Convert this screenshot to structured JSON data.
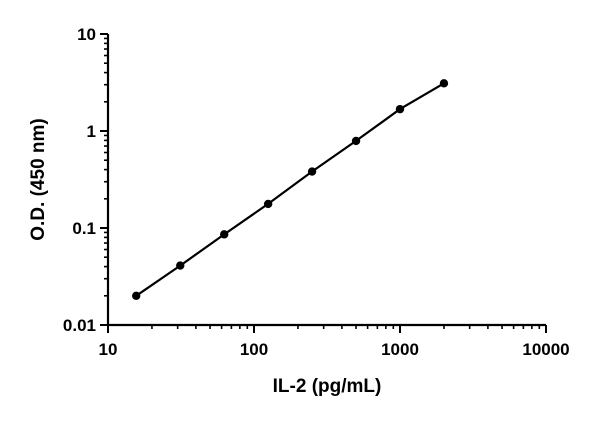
{
  "chart_data": {
    "type": "line",
    "title": "",
    "xlabel": "IL-2 (pg/mL)",
    "ylabel": "O.D. (450 nm)",
    "x_scale": "log",
    "y_scale": "log",
    "xlim": [
      10,
      10000
    ],
    "ylim": [
      0.01,
      10
    ],
    "x_ticks": [
      10,
      100,
      1000,
      10000
    ],
    "x_tick_labels": [
      "10",
      "100",
      "1000",
      "10000"
    ],
    "y_ticks": [
      0.01,
      0.1,
      1,
      10
    ],
    "y_tick_labels": [
      "0.01",
      "0.1",
      "1",
      "10"
    ],
    "grid": false,
    "legend": "none",
    "series": [
      {
        "x": [
          15.6,
          31.25,
          62.5,
          125,
          250,
          500,
          1000,
          2000
        ],
        "y": [
          0.02,
          0.041,
          0.086,
          0.177,
          0.382,
          0.79,
          1.68,
          3.1
        ],
        "color": "#000000"
      }
    ]
  }
}
